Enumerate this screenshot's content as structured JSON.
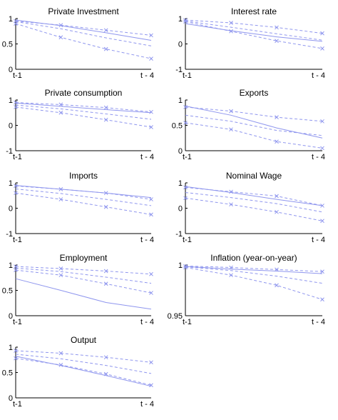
{
  "colors": {
    "series": "#8f96ee",
    "axis": "#000000",
    "background": "#ffffff"
  },
  "chart_data": [
    {
      "type": "line",
      "title": "Private Investment",
      "x": [
        1,
        2,
        3,
        4
      ],
      "xticklabels": [
        "t-1",
        "t - 4"
      ],
      "ylim": [
        0,
        1
      ],
      "yticks": [
        0,
        0.5,
        1
      ],
      "series": [
        {
          "style": "solid",
          "markers": false,
          "values": [
            0.97,
            0.86,
            0.72,
            0.57
          ]
        },
        {
          "style": "dashed",
          "markers": true,
          "values": [
            0.95,
            0.87,
            0.77,
            0.67
          ]
        },
        {
          "style": "dashed",
          "markers": true,
          "values": [
            0.9,
            0.63,
            0.4,
            0.21
          ]
        },
        {
          "style": "dashed",
          "markers": false,
          "values": [
            0.94,
            0.8,
            0.62,
            0.46
          ]
        }
      ]
    },
    {
      "type": "line",
      "title": "Interest rate",
      "x": [
        1,
        2,
        3,
        4
      ],
      "xticklabels": [
        "t-1",
        "t - 4"
      ],
      "ylim": [
        -1,
        1
      ],
      "yticks": [
        -1,
        0,
        1
      ],
      "series": [
        {
          "style": "solid",
          "markers": false,
          "values": [
            0.8,
            0.52,
            0.28,
            0.1
          ]
        },
        {
          "style": "dashed",
          "markers": true,
          "values": [
            0.94,
            0.83,
            0.65,
            0.42
          ]
        },
        {
          "style": "dashed",
          "markers": true,
          "values": [
            0.88,
            0.5,
            0.12,
            -0.18
          ]
        },
        {
          "style": "dashed",
          "markers": false,
          "values": [
            0.9,
            0.66,
            0.4,
            0.15
          ]
        }
      ]
    },
    {
      "type": "line",
      "title": "Private consumption",
      "x": [
        1,
        2,
        3,
        4
      ],
      "xticklabels": [
        "t-1",
        "t - 4"
      ],
      "ylim": [
        -1,
        1
      ],
      "yticks": [
        -1,
        0,
        1
      ],
      "series": [
        {
          "style": "solid",
          "markers": false,
          "values": [
            0.88,
            0.75,
            0.62,
            0.5
          ]
        },
        {
          "style": "dashed",
          "markers": true,
          "values": [
            0.9,
            0.82,
            0.7,
            0.53
          ]
        },
        {
          "style": "dashed",
          "markers": true,
          "values": [
            0.72,
            0.5,
            0.22,
            -0.07
          ]
        },
        {
          "style": "dashed",
          "markers": false,
          "values": [
            0.8,
            0.65,
            0.45,
            0.24
          ]
        }
      ]
    },
    {
      "type": "line",
      "title": "Exports",
      "x": [
        1,
        2,
        3,
        4
      ],
      "xticklabels": [
        "t-1",
        "t - 4"
      ],
      "ylim": [
        0,
        1
      ],
      "yticks": [
        0,
        0.5,
        1
      ],
      "series": [
        {
          "style": "solid",
          "markers": false,
          "values": [
            0.88,
            0.7,
            0.45,
            0.25
          ]
        },
        {
          "style": "dashed",
          "markers": true,
          "values": [
            0.86,
            0.78,
            0.66,
            0.58
          ]
        },
        {
          "style": "dashed",
          "markers": true,
          "values": [
            0.55,
            0.42,
            0.18,
            0.05
          ]
        },
        {
          "style": "dashed",
          "markers": false,
          "values": [
            0.7,
            0.58,
            0.4,
            0.3
          ]
        }
      ]
    },
    {
      "type": "line",
      "title": "Imports",
      "x": [
        1,
        2,
        3,
        4
      ],
      "xticklabels": [
        "t-1",
        "t - 4"
      ],
      "ylim": [
        -1,
        1
      ],
      "yticks": [
        -1,
        0,
        1
      ],
      "series": [
        {
          "style": "solid",
          "markers": false,
          "values": [
            0.9,
            0.75,
            0.6,
            0.42
          ]
        },
        {
          "style": "dashed",
          "markers": true,
          "values": [
            0.88,
            0.75,
            0.6,
            0.35
          ]
        },
        {
          "style": "dashed",
          "markers": true,
          "values": [
            0.6,
            0.35,
            0.05,
            -0.25
          ]
        },
        {
          "style": "dashed",
          "markers": false,
          "values": [
            0.76,
            0.58,
            0.35,
            0.1
          ]
        }
      ]
    },
    {
      "type": "line",
      "title": "Nominal Wage",
      "x": [
        1,
        2,
        3,
        4
      ],
      "xticklabels": [
        "t-1",
        "t - 4"
      ],
      "ylim": [
        -1,
        1
      ],
      "yticks": [
        -1,
        0,
        1
      ],
      "series": [
        {
          "style": "solid",
          "markers": false,
          "values": [
            0.85,
            0.62,
            0.35,
            0.1
          ]
        },
        {
          "style": "dashed",
          "markers": true,
          "values": [
            0.82,
            0.65,
            0.48,
            0.1
          ]
        },
        {
          "style": "dashed",
          "markers": true,
          "values": [
            0.4,
            0.15,
            -0.15,
            -0.5
          ]
        },
        {
          "style": "dashed",
          "markers": false,
          "values": [
            0.62,
            0.42,
            0.18,
            -0.15
          ]
        }
      ]
    },
    {
      "type": "line",
      "title": "Employment",
      "x": [
        1,
        2,
        3,
        4
      ],
      "xticklabels": [
        "t-1",
        "t - 4"
      ],
      "ylim": [
        0,
        1
      ],
      "yticks": [
        0,
        0.5,
        1
      ],
      "series": [
        {
          "style": "solid",
          "markers": false,
          "values": [
            0.73,
            0.5,
            0.26,
            0.13
          ]
        },
        {
          "style": "dashed",
          "markers": true,
          "values": [
            0.97,
            0.93,
            0.88,
            0.82
          ]
        },
        {
          "style": "dashed",
          "markers": true,
          "values": [
            0.9,
            0.8,
            0.63,
            0.45
          ]
        },
        {
          "style": "dashed",
          "markers": false,
          "values": [
            0.94,
            0.87,
            0.76,
            0.64
          ]
        }
      ]
    },
    {
      "type": "line",
      "title": "Inflation (year-on-year)",
      "x": [
        1,
        2,
        3,
        4
      ],
      "xticklabels": [
        "t-1",
        "t - 4"
      ],
      "ylim": [
        0.95,
        1.0
      ],
      "yticks": [
        0.95,
        1
      ],
      "series": [
        {
          "style": "solid",
          "markers": false,
          "values": [
            0.9985,
            0.996,
            0.994,
            0.9915
          ]
        },
        {
          "style": "dashed",
          "markers": true,
          "values": [
            0.999,
            0.9975,
            0.9955,
            0.9935
          ]
        },
        {
          "style": "dashed",
          "markers": true,
          "values": [
            0.9975,
            0.99,
            0.98,
            0.966
          ]
        },
        {
          "style": "dashed",
          "markers": false,
          "values": [
            0.9982,
            0.9945,
            0.989,
            0.982
          ]
        }
      ]
    },
    {
      "type": "line",
      "title": "Output",
      "x": [
        1,
        2,
        3,
        4
      ],
      "xticklabels": [
        "t-1",
        "t - 4"
      ],
      "ylim": [
        0,
        1
      ],
      "yticks": [
        0,
        0.5,
        1
      ],
      "series": [
        {
          "style": "solid",
          "markers": false,
          "values": [
            0.82,
            0.64,
            0.44,
            0.23
          ]
        },
        {
          "style": "dashed",
          "markers": true,
          "values": [
            0.93,
            0.88,
            0.8,
            0.7
          ]
        },
        {
          "style": "dashed",
          "markers": true,
          "values": [
            0.78,
            0.65,
            0.47,
            0.25
          ]
        },
        {
          "style": "dashed",
          "markers": false,
          "values": [
            0.86,
            0.77,
            0.64,
            0.48
          ]
        }
      ]
    }
  ]
}
